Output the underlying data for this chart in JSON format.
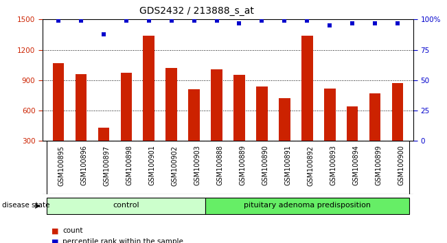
{
  "title": "GDS2432 / 213888_s_at",
  "samples": [
    "GSM100895",
    "GSM100896",
    "GSM100897",
    "GSM100898",
    "GSM100901",
    "GSM100902",
    "GSM100903",
    "GSM100888",
    "GSM100889",
    "GSM100890",
    "GSM100891",
    "GSM100892",
    "GSM100893",
    "GSM100894",
    "GSM100899",
    "GSM100900"
  ],
  "counts": [
    1070,
    960,
    430,
    970,
    1340,
    1020,
    810,
    1010,
    950,
    840,
    720,
    1340,
    820,
    640,
    770,
    870
  ],
  "percentiles": [
    99,
    99,
    88,
    99,
    99,
    99,
    99,
    99,
    97,
    99,
    99,
    99,
    95,
    97,
    97,
    97
  ],
  "groups": [
    {
      "label": "control",
      "start": 0,
      "end": 7,
      "color": "#ccffcc"
    },
    {
      "label": "pituitary adenoma predisposition",
      "start": 7,
      "end": 16,
      "color": "#66ee66"
    }
  ],
  "ylim_left": [
    300,
    1500
  ],
  "yticks_left": [
    300,
    600,
    900,
    1200,
    1500
  ],
  "ylim_right": [
    0,
    100
  ],
  "yticks_right": [
    0,
    25,
    50,
    75,
    100
  ],
  "bar_color": "#cc2200",
  "dot_color": "#0000cc",
  "dot_size": 25,
  "bar_width": 0.5,
  "bg_color": "#ffffff",
  "legend_items": [
    "count",
    "percentile rank within the sample"
  ],
  "red_color": "#cc2200",
  "blue_color": "#0000cc",
  "disease_label": "disease state",
  "title_fontsize": 10,
  "tick_fontsize": 7.5,
  "group_fontsize": 8
}
